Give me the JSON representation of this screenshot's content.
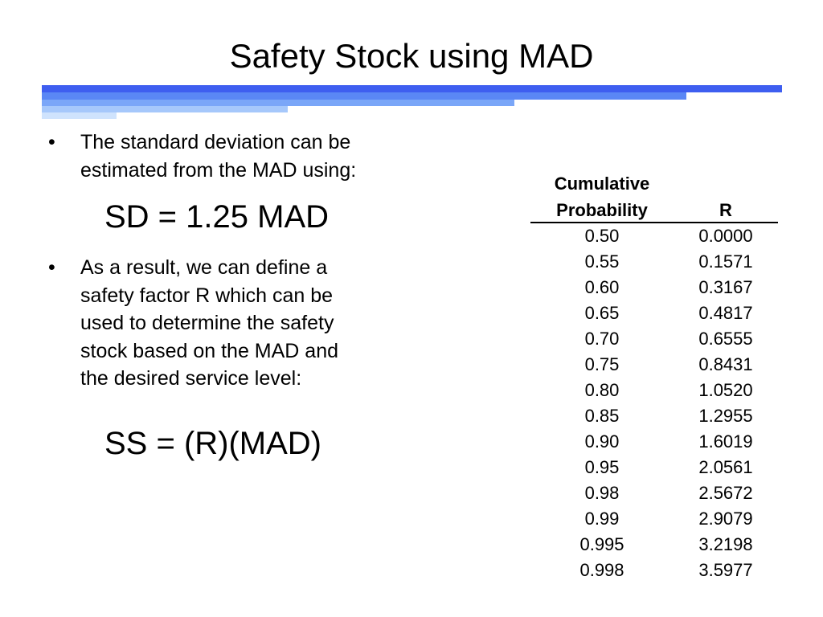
{
  "slide": {
    "title": "Safety Stock using MAD",
    "bullet_glyph": "•",
    "bullets": [
      "The standard deviation can be\nestimated from the MAD using:",
      "As a result, we can define a\nsafety factor R which can be\nused to determine the safety\nstock based on the MAD and\nthe desired service level:"
    ],
    "formulas": [
      "SD = 1.25 MAD",
      "SS = (R)(MAD)"
    ],
    "bar_colors": [
      "#3e5ef0",
      "#5a87f5",
      "#7aa6f8",
      "#a6c8fb",
      "#cfe3fd"
    ]
  },
  "table": {
    "headers": [
      "Cumulative\nProbability",
      "R"
    ],
    "rows": [
      [
        "0.50",
        "0.0000"
      ],
      [
        "0.55",
        "0.1571"
      ],
      [
        "0.60",
        "0.3167"
      ],
      [
        "0.65",
        "0.4817"
      ],
      [
        "0.70",
        "0.6555"
      ],
      [
        "0.75",
        "0.8431"
      ],
      [
        "0.80",
        "1.0520"
      ],
      [
        "0.85",
        "1.2955"
      ],
      [
        "0.90",
        "1.6019"
      ],
      [
        "0.95",
        "2.0561"
      ],
      [
        "0.98",
        "2.5672"
      ],
      [
        "0.99",
        "2.9079"
      ],
      [
        "0.995",
        "3.2198"
      ],
      [
        "0.998",
        "3.5977"
      ]
    ]
  }
}
